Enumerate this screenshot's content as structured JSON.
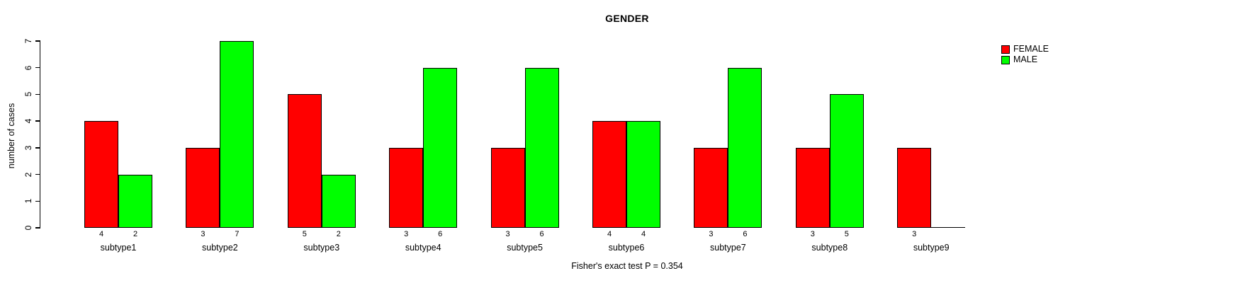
{
  "chart_data": {
    "type": "bar",
    "title": "GENDER",
    "ylabel": "number of cases",
    "xlabel": "",
    "ylim": [
      0,
      7
    ],
    "y_ticks": [
      0,
      1,
      2,
      3,
      4,
      5,
      6,
      7
    ],
    "grid": false,
    "legend_position": "top-right",
    "categories": [
      "subtype1",
      "subtype2",
      "subtype3",
      "subtype4",
      "subtype5",
      "subtype6",
      "subtype7",
      "subtype8",
      "subtype9"
    ],
    "series": [
      {
        "name": "FEMALE",
        "color": "#ff0000",
        "values": [
          4,
          3,
          5,
          3,
          3,
          4,
          3,
          3,
          3
        ]
      },
      {
        "name": "MALE",
        "color": "#00ff00",
        "values": [
          2,
          7,
          2,
          6,
          6,
          4,
          6,
          5,
          0
        ]
      }
    ],
    "bar_value_labels_shown": true,
    "annotation": "Fisher's exact test P = 0.354"
  }
}
